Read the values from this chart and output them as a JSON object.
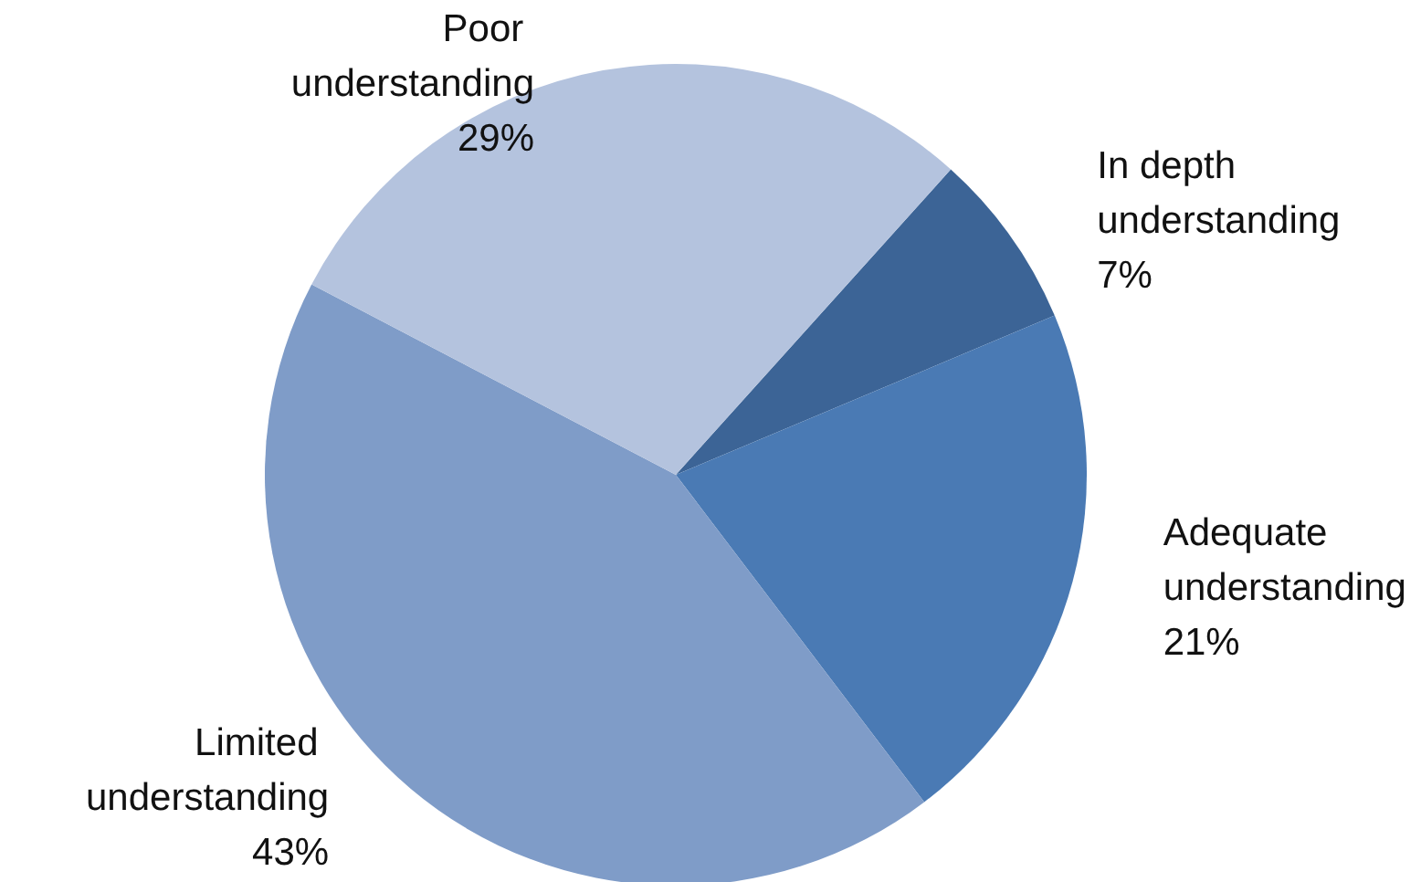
{
  "chart_data": {
    "type": "pie",
    "categories": [
      "In depth understanding",
      "Adequate understanding",
      "Limited understanding",
      "Poor understanding"
    ],
    "values": [
      7,
      21,
      43,
      29
    ],
    "colors": [
      "#3c6496",
      "#4a7ab4",
      "#7f9cc8",
      "#b4c3de"
    ],
    "value_labels": [
      "7%",
      "21%",
      "43%",
      "29%"
    ]
  }
}
